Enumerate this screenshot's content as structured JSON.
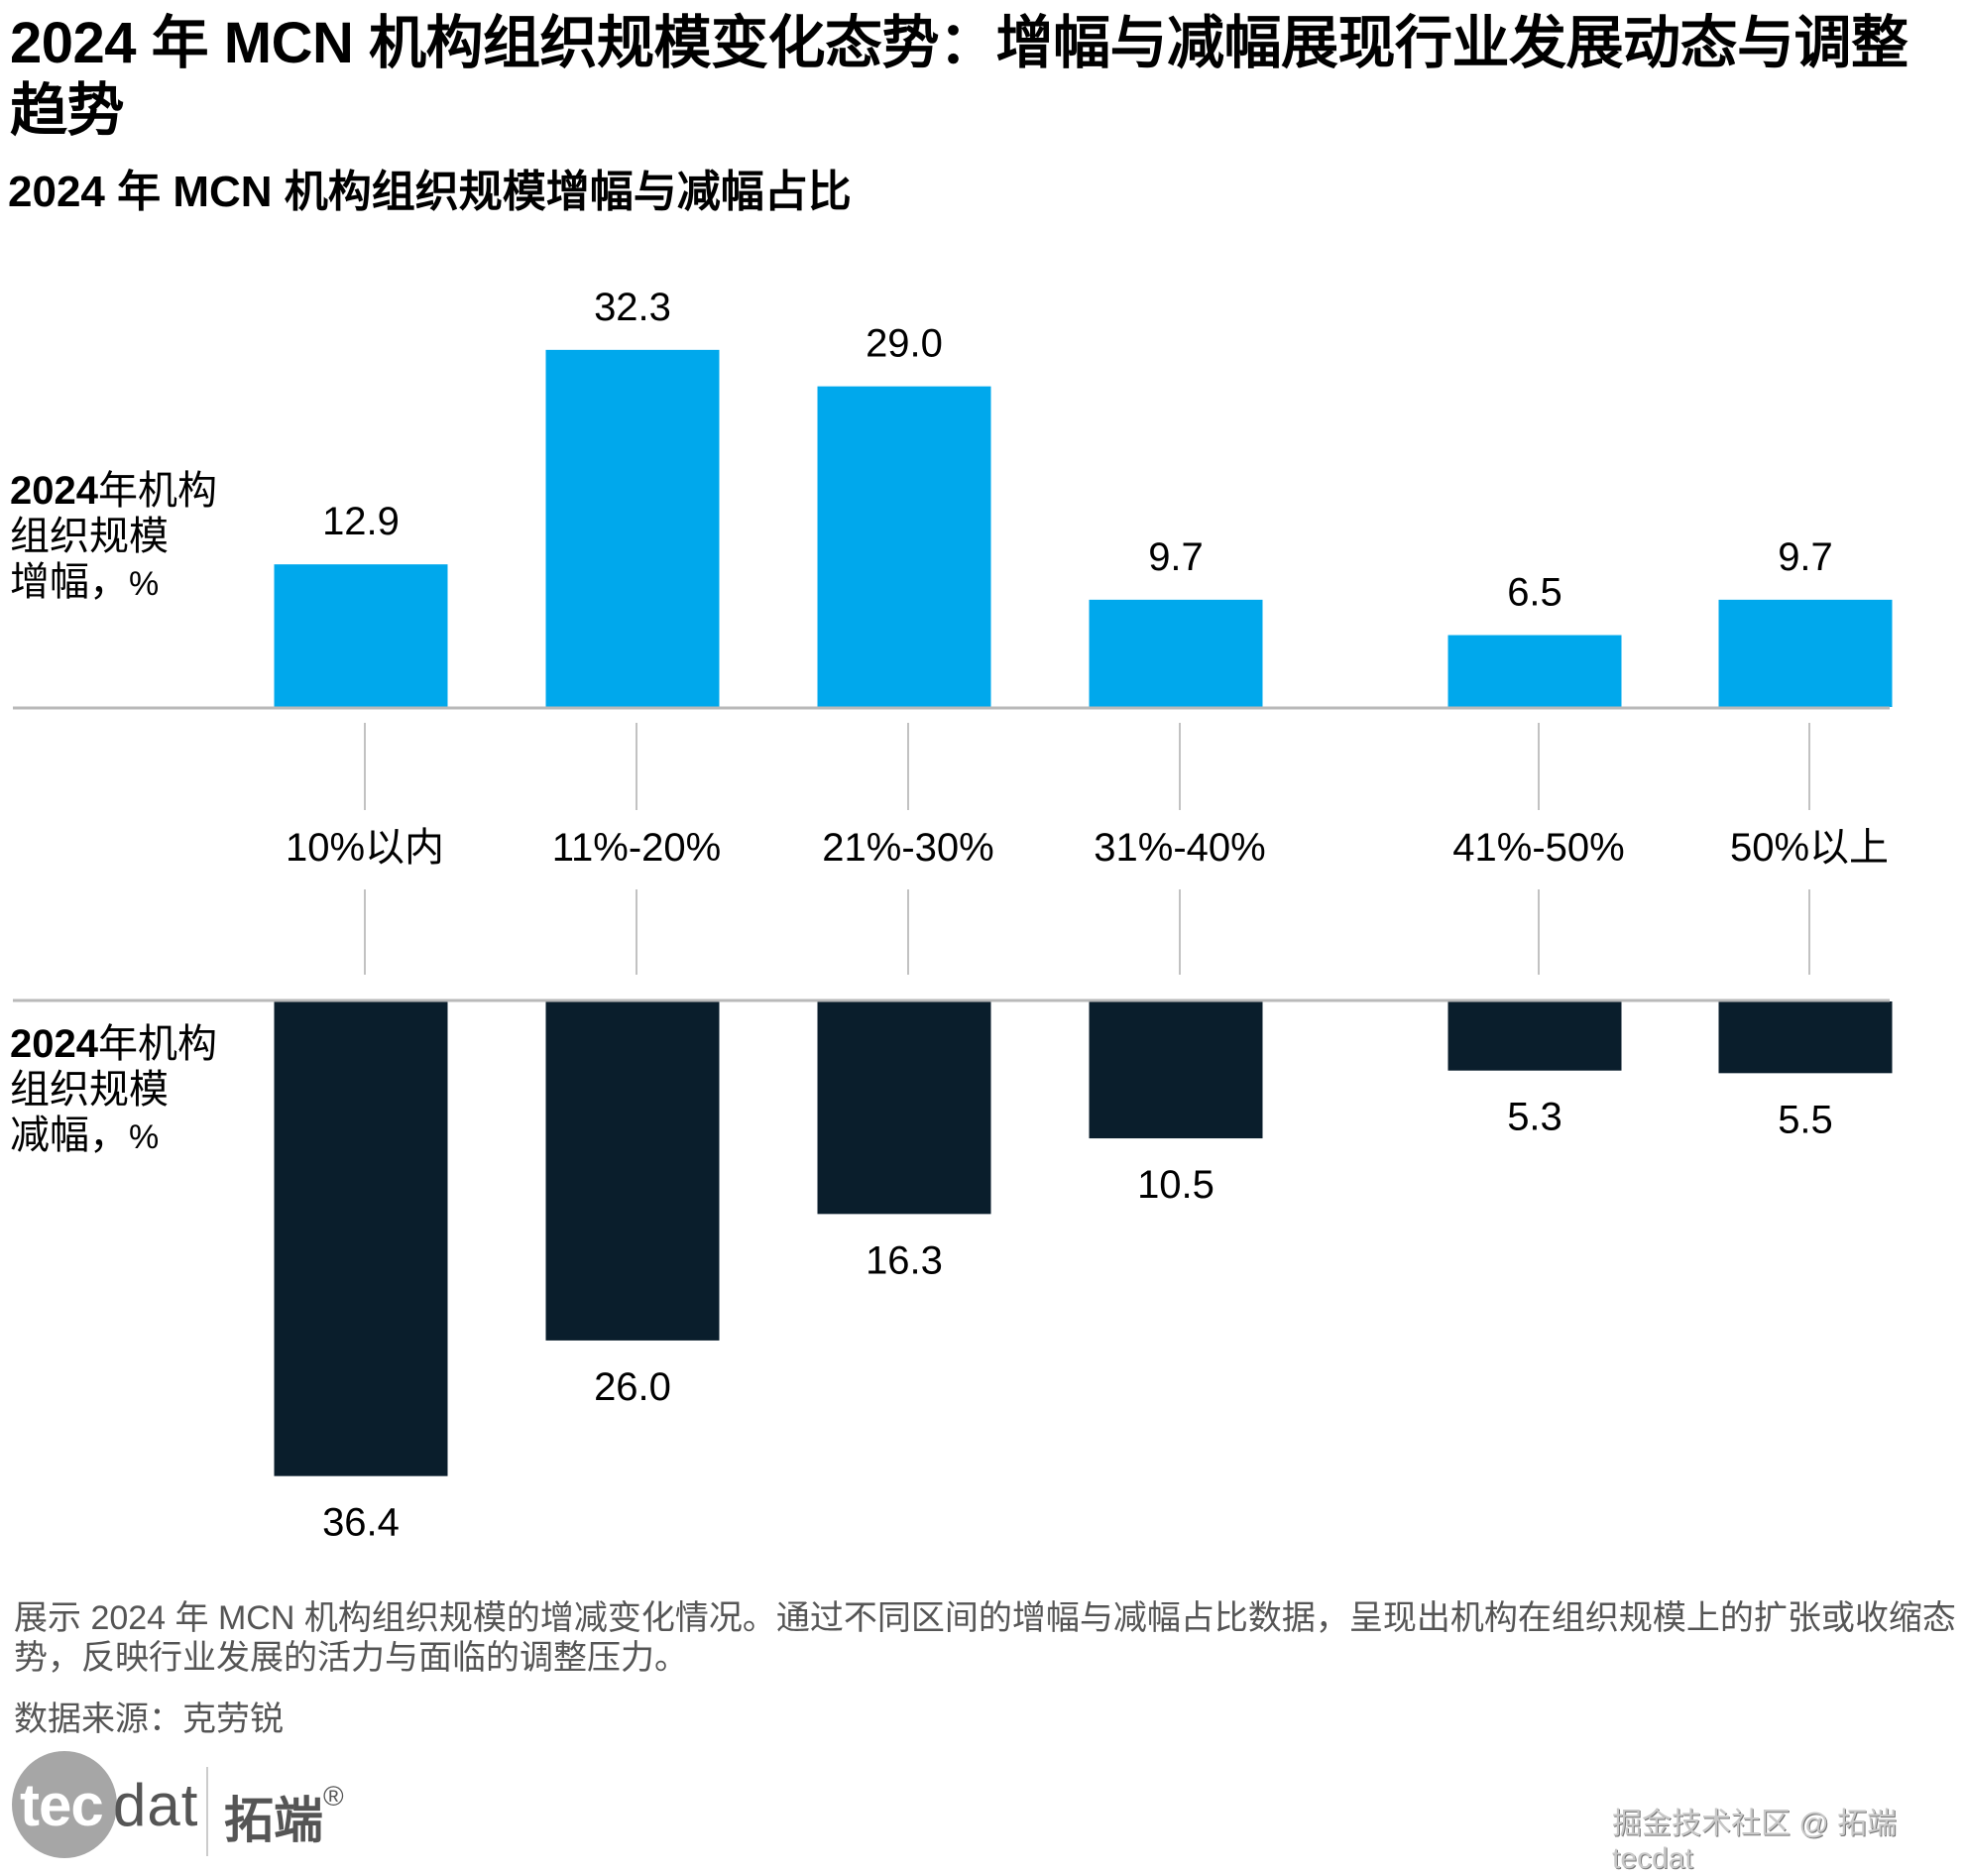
{
  "title": "2024 年 MCN 机构组织规模变化态势：增幅与减幅展现行业发展动态与调整趋势",
  "subtitle": "2024 年 MCN 机构组织规模增幅与减幅占比",
  "y_labels": {
    "increase": {
      "bold": "2024",
      "line1_rest": "年机构",
      "line2": "组织规模",
      "line3": "增幅，",
      "unit": "%"
    },
    "decrease": {
      "bold": "2024",
      "line1_rest": "年机构",
      "line2": "组织规模",
      "line3": "减幅，",
      "unit": "%"
    }
  },
  "chart_data": {
    "type": "bar",
    "title": "2024 年 MCN 机构组织规模增幅与减幅占比",
    "xlabel": "",
    "ylabel": "%",
    "categories": [
      "10%以内",
      "11%-20%",
      "21%-30%",
      "31%-40%",
      "41%-50%",
      "50%以上"
    ],
    "series": [
      {
        "name": "2024年机构组织规模增幅，%",
        "values": [
          12.9,
          32.3,
          29.0,
          9.7,
          6.5,
          9.7
        ],
        "color": "#00a8ec",
        "direction": "up"
      },
      {
        "name": "2024年机构组织规模减幅，%",
        "values": [
          36.4,
          26.0,
          16.3,
          10.5,
          5.3,
          5.5
        ],
        "color": "#0a1e2c",
        "direction": "down"
      }
    ],
    "value_labels": true,
    "grid": false,
    "legend": "none"
  },
  "footer": {
    "note": "展示 2024 年 MCN 机构组织规模的增减变化情况。通过不同区间的增幅与减幅占比数据，呈现出机构在组织规模上的扩张或收缩态势，反映行业发展的活力与面临的调整压力。",
    "source": "数据来源：克劳锐"
  },
  "logo": {
    "tec": "tec",
    "dat": "dat",
    "cn": "拓端",
    "reg": "®"
  },
  "watermark": "掘金技术社区 @ 拓端tecdat"
}
